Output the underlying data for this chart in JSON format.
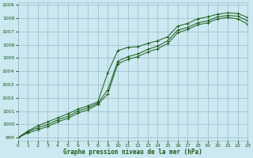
{
  "title": "Graphe pression niveau de la mer (hPa)",
  "bg_color": "#cce8f0",
  "grid_color": "#99bbcc",
  "line_color": "#1a5c1a",
  "xmin": 0,
  "xmax": 23,
  "ymin": 998.8,
  "ymax": 1009.2,
  "xticks": [
    0,
    1,
    2,
    3,
    4,
    5,
    6,
    7,
    8,
    9,
    10,
    11,
    12,
    13,
    14,
    15,
    16,
    17,
    18,
    19,
    20,
    21,
    22,
    23
  ],
  "yticks": [
    999,
    1000,
    1001,
    1002,
    1003,
    1004,
    1005,
    1006,
    1007,
    1008,
    1009
  ],
  "line1_x": [
    0,
    1,
    2,
    3,
    4,
    5,
    6,
    7,
    8,
    9,
    10,
    11,
    12,
    13,
    14,
    15,
    16,
    17,
    18,
    19,
    20,
    21,
    22,
    23
  ],
  "line1_y": [
    999.0,
    999.5,
    999.9,
    1000.2,
    1000.5,
    1000.8,
    1001.15,
    1001.4,
    1001.7,
    1003.9,
    1005.55,
    1005.8,
    1005.85,
    1006.1,
    1006.3,
    1006.6,
    1007.4,
    1007.6,
    1007.95,
    1008.1,
    1008.3,
    1008.4,
    1008.35,
    1008.05
  ],
  "line2_x": [
    0,
    1,
    2,
    3,
    4,
    5,
    6,
    7,
    8,
    9,
    10,
    11,
    12,
    13,
    14,
    15,
    16,
    17,
    18,
    19,
    20,
    21,
    22,
    23
  ],
  "line2_y": [
    999.0,
    999.45,
    999.75,
    1000.0,
    1000.35,
    1000.6,
    1001.0,
    1001.25,
    1001.6,
    1002.6,
    1004.75,
    1005.1,
    1005.3,
    1005.65,
    1005.9,
    1006.3,
    1007.1,
    1007.3,
    1007.65,
    1007.8,
    1008.1,
    1008.2,
    1008.15,
    1007.8
  ],
  "line3_x": [
    0,
    1,
    2,
    3,
    4,
    5,
    6,
    7,
    8,
    9,
    10,
    11,
    12,
    13,
    14,
    15,
    16,
    17,
    18,
    19,
    20,
    21,
    22,
    23
  ],
  "line3_y": [
    999.0,
    999.35,
    999.6,
    999.85,
    1000.2,
    1000.45,
    1000.85,
    1001.1,
    1001.5,
    1002.3,
    1004.55,
    1004.9,
    1005.1,
    1005.45,
    1005.7,
    1006.1,
    1006.9,
    1007.15,
    1007.5,
    1007.65,
    1007.95,
    1008.05,
    1007.95,
    1007.55
  ]
}
